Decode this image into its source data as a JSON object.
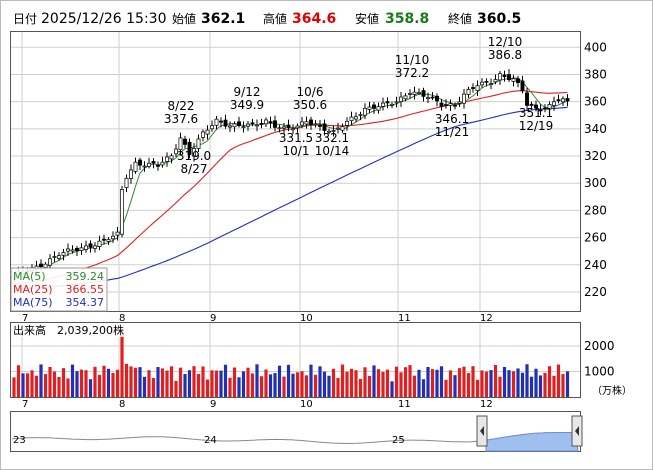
{
  "header": {
    "date_label": "日付",
    "datetime": "2025/12/26 15:30",
    "open_label": "始値",
    "open_value": "362.1",
    "high_label": "高値",
    "high_value": "364.6",
    "low_label": "安値",
    "low_value": "358.8",
    "close_label": "終値",
    "close_value": "360.5"
  },
  "legend": {
    "ma5_label": "MA(5)",
    "ma5_value": "359.24",
    "ma25_label": "MA(25)",
    "ma25_value": "366.55",
    "ma75_label": "MA(75)",
    "ma75_value": "354.37"
  },
  "volume_header": {
    "label": "出来高",
    "value": "2,039,200株"
  },
  "volume_unit": "（万株）",
  "colors": {
    "up": "#ffffff",
    "down": "#000000",
    "ma5": "#2e8b2e",
    "ma25": "#e02020",
    "ma75": "#2030c0",
    "vol_up": "#e02020",
    "vol_down": "#2030b0",
    "accent_red": "#e00000",
    "overview": "#9fbfef"
  },
  "chart_data": [
    {
      "type": "candlestick",
      "yticks": [
        "400",
        "380",
        "360",
        "340",
        "320",
        "300",
        "280",
        "260",
        "240",
        "220"
      ],
      "ylim": [
        206,
        412
      ],
      "xticks": [
        "7",
        "8",
        "9",
        "10",
        "11",
        "12"
      ],
      "grid": true,
      "annotations": [
        {
          "id": "a1",
          "date": "8/22",
          "value": "337.6"
        },
        {
          "id": "a2",
          "date": "8/27",
          "value": "319.0"
        },
        {
          "id": "a3",
          "date": "9/12",
          "value": "349.9"
        },
        {
          "id": "a4",
          "date": "10/6",
          "value": "350.6"
        },
        {
          "id": "a5",
          "date": "10/1",
          "value": "331.5"
        },
        {
          "id": "a6",
          "date": "10/14",
          "value": "332.1"
        },
        {
          "id": "a7",
          "date": "11/10",
          "value": "372.2"
        },
        {
          "id": "a8",
          "date": "11/21",
          "value": "346.1"
        },
        {
          "id": "a9",
          "date": "12/10",
          "value": "386.8"
        },
        {
          "id": "a10",
          "date": "12/19",
          "value": "351.1"
        }
      ],
      "anchors": [
        {
          "i": 0,
          "c": 232
        },
        {
          "i": 5,
          "c": 238
        },
        {
          "i": 10,
          "c": 248
        },
        {
          "i": 15,
          "c": 252
        },
        {
          "i": 20,
          "c": 258
        },
        {
          "i": 23,
          "c": 262
        },
        {
          "i": 24,
          "c": 295
        },
        {
          "i": 25,
          "c": 305
        },
        {
          "i": 27,
          "c": 315
        },
        {
          "i": 32,
          "c": 313
        },
        {
          "i": 35,
          "c": 320
        },
        {
          "i": 37,
          "c": 334
        },
        {
          "i": 39,
          "c": 322
        },
        {
          "i": 42,
          "c": 336
        },
        {
          "i": 45,
          "c": 346
        },
        {
          "i": 48,
          "c": 343
        },
        {
          "i": 53,
          "c": 342
        },
        {
          "i": 56,
          "c": 346
        },
        {
          "i": 60,
          "c": 340
        },
        {
          "i": 63,
          "c": 341
        },
        {
          "i": 65,
          "c": 346
        },
        {
          "i": 68,
          "c": 342
        },
        {
          "i": 71,
          "c": 337
        },
        {
          "i": 74,
          "c": 345
        },
        {
          "i": 78,
          "c": 355
        },
        {
          "i": 82,
          "c": 357
        },
        {
          "i": 85,
          "c": 360
        },
        {
          "i": 88,
          "c": 368
        },
        {
          "i": 92,
          "c": 363
        },
        {
          "i": 95,
          "c": 358
        },
        {
          "i": 98,
          "c": 358
        },
        {
          "i": 100,
          "c": 365
        },
        {
          "i": 103,
          "c": 372
        },
        {
          "i": 106,
          "c": 375
        },
        {
          "i": 108,
          "c": 380
        },
        {
          "i": 111,
          "c": 376
        },
        {
          "i": 113,
          "c": 368
        },
        {
          "i": 114,
          "c": 358
        },
        {
          "i": 116,
          "c": 355
        },
        {
          "i": 119,
          "c": 357
        },
        {
          "i": 121,
          "c": 362
        },
        {
          "i": 123,
          "c": 360.5
        }
      ]
    },
    {
      "type": "bar",
      "name": "volume",
      "yticks": [
        "2000",
        "1000"
      ],
      "ylim": [
        0,
        2900
      ],
      "xticks": [
        "7",
        "8",
        "9",
        "10",
        "11",
        "12"
      ],
      "grid": true
    },
    {
      "type": "area",
      "name": "overview",
      "xticks": [
        "23",
        "24",
        "25"
      ]
    }
  ]
}
